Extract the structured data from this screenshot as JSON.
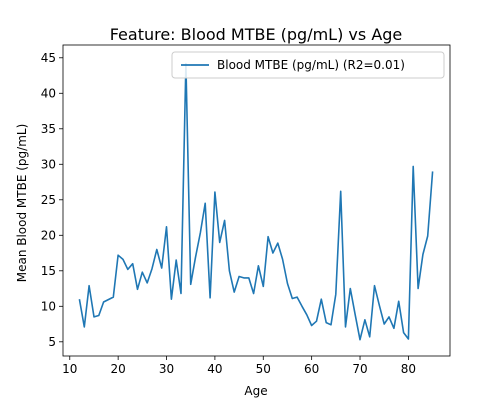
{
  "chart_data": {
    "type": "line",
    "title": "Feature: Blood MTBE (pg/mL) vs Age",
    "xlabel": "Age",
    "ylabel": "Mean Blood MTBE (pg/mL)",
    "xlim": [
      8.6,
      88.6
    ],
    "ylim": [
      3.0,
      46.8
    ],
    "xticks": [
      10,
      20,
      30,
      40,
      50,
      60,
      70,
      80
    ],
    "yticks": [
      5,
      10,
      15,
      20,
      25,
      30,
      35,
      40,
      45
    ],
    "grid": false,
    "legend_position": "top-right",
    "series": [
      {
        "name": "Blood MTBE (pg/mL) (R2=0.01)",
        "color": "#1f77b4",
        "x": [
          12,
          13,
          14,
          15,
          16,
          17,
          19,
          20,
          21,
          22,
          23,
          24,
          25,
          26,
          27,
          28,
          29,
          30,
          31,
          32,
          33,
          34,
          35,
          36,
          37,
          38,
          39,
          40,
          41,
          42,
          43,
          44,
          45,
          46,
          47,
          48,
          49,
          50,
          51,
          52,
          53,
          54,
          55,
          56,
          57,
          58,
          59,
          60,
          61,
          62,
          63,
          64,
          65,
          66,
          67,
          68,
          69,
          70,
          71,
          72,
          73,
          74,
          75,
          76,
          77,
          78,
          79,
          80,
          81,
          82,
          83,
          84,
          85
        ],
        "y": [
          11.0,
          7.1,
          12.9,
          8.5,
          8.7,
          10.6,
          11.3,
          17.2,
          16.6,
          15.2,
          16.0,
          12.4,
          14.8,
          13.3,
          15.3,
          18.0,
          15.4,
          21.2,
          11.0,
          16.5,
          11.8,
          44.2,
          13.1,
          16.9,
          20.4,
          24.5,
          11.2,
          26.1,
          19.0,
          22.1,
          15.0,
          12.0,
          14.2,
          14.0,
          14.0,
          11.8,
          15.7,
          12.8,
          19.8,
          17.5,
          18.9,
          16.6,
          13.2,
          11.1,
          11.3,
          10.0,
          8.8,
          7.3,
          7.9,
          11.0,
          7.7,
          7.4,
          11.7,
          26.2,
          7.1,
          12.5,
          8.8,
          5.3,
          8.1,
          5.7,
          12.9,
          10.1,
          7.5,
          8.5,
          6.9,
          10.7,
          6.3,
          5.4,
          29.7,
          12.5,
          17.3,
          19.9,
          29.0
        ]
      }
    ]
  }
}
